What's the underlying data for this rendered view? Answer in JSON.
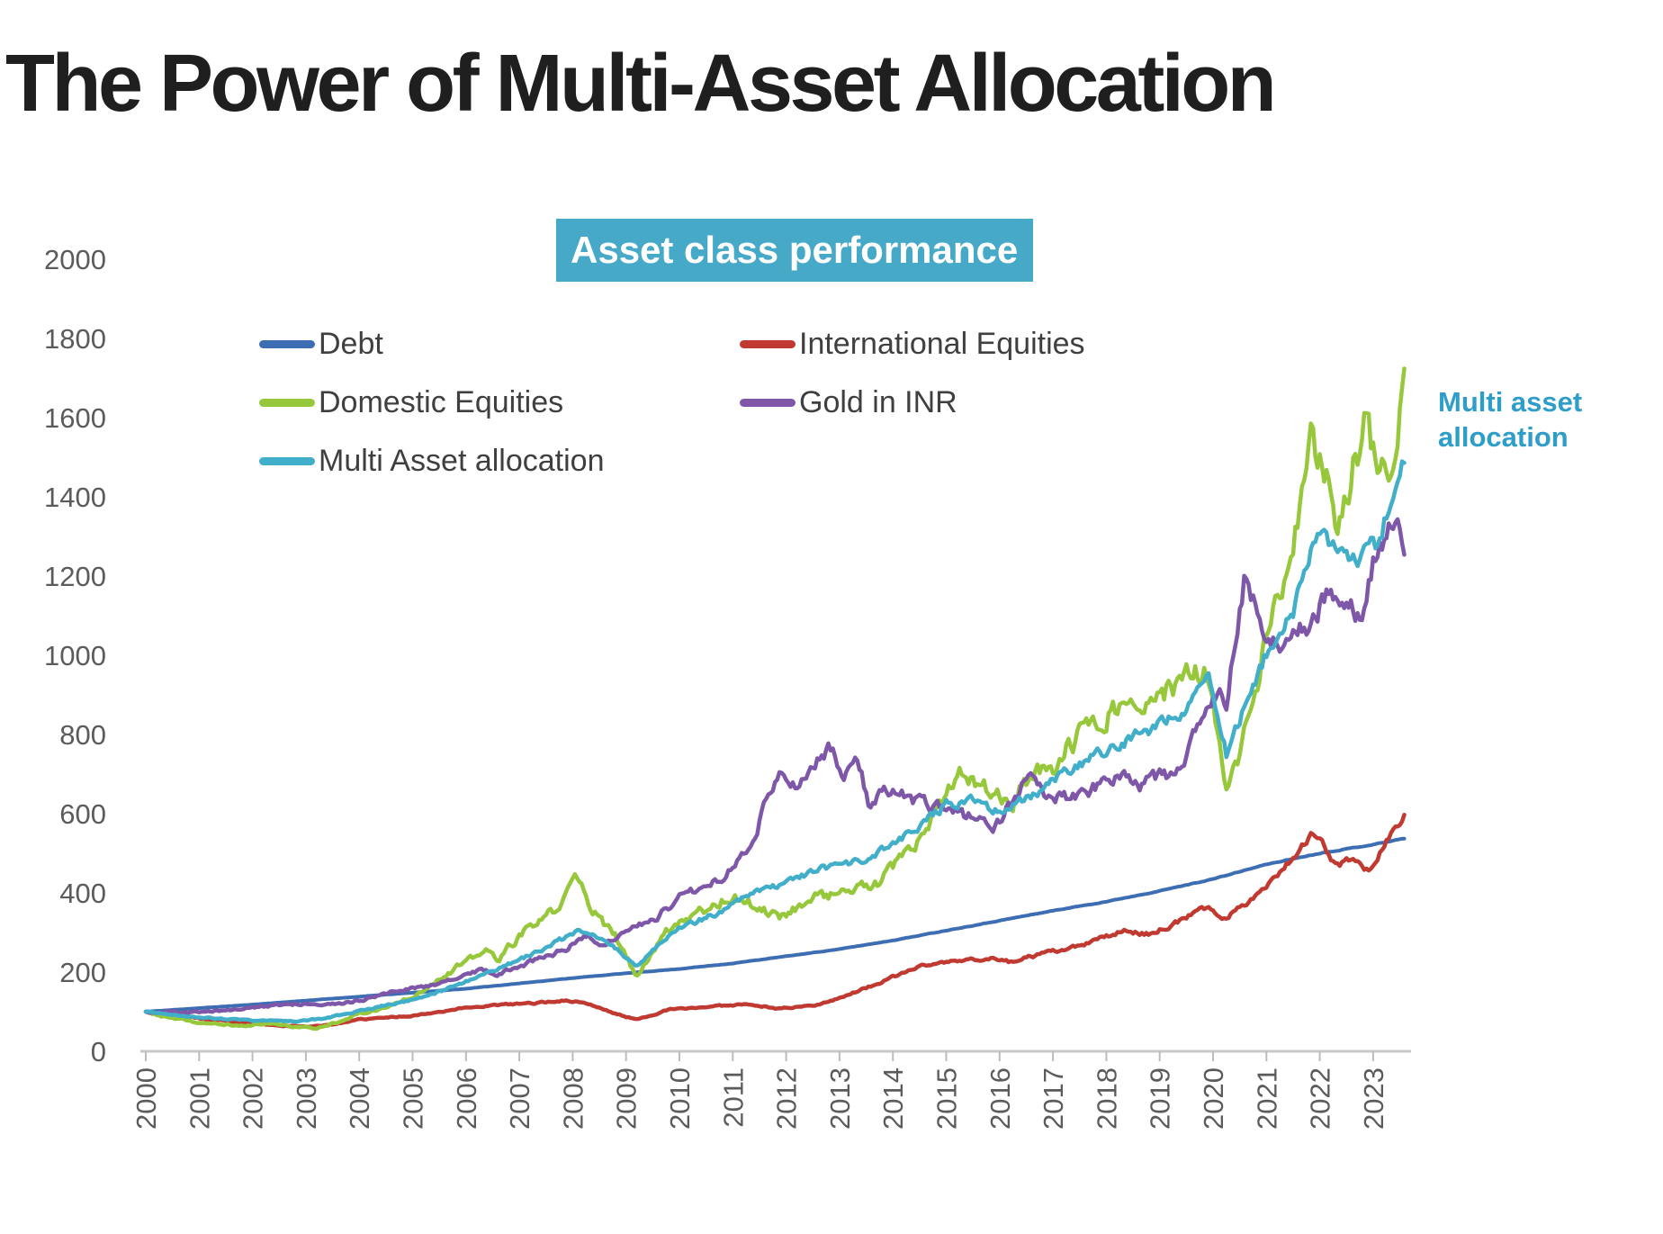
{
  "page": {
    "title": "The Power of Multi-Asset Allocation"
  },
  "chart": {
    "banner_title": "Asset class performance",
    "annotation": "Multi asset allocation",
    "banner_bg": "#46A9C8",
    "annotation_color": "#2E9EC9",
    "axis_text_color": "#5b5b5b",
    "axis_line_color": "#c9c9c9"
  },
  "chart_data": {
    "type": "line",
    "title": "Asset class performance",
    "grid": false,
    "legend_position": "top-left",
    "x_axis": {
      "range": [
        2000,
        2023.6
      ],
      "ticks": [
        2000,
        2001,
        2002,
        2003,
        2004,
        2005,
        2006,
        2007,
        2008,
        2009,
        2010,
        2011,
        2012,
        2013,
        2014,
        2015,
        2016,
        2017,
        2018,
        2019,
        2020,
        2021,
        2022,
        2023
      ],
      "tick_label_rotation": -90
    },
    "y_axis": {
      "range": [
        0,
        2000
      ],
      "ticks": [
        0,
        200,
        400,
        600,
        800,
        1000,
        1200,
        1400,
        1600,
        1800,
        2000
      ]
    },
    "base_value": 100,
    "legend": {
      "columns": [
        [
          0,
          2,
          4
        ],
        [
          1,
          3
        ]
      ]
    },
    "series": [
      {
        "name": "Debt",
        "color": "#3D6EB4",
        "volatility": 0.0015,
        "seed": 11,
        "width": 4,
        "keypoints": [
          [
            2000,
            100
          ],
          [
            2002,
            118
          ],
          [
            2004,
            138
          ],
          [
            2006,
            158
          ],
          [
            2008,
            185
          ],
          [
            2009,
            197
          ],
          [
            2010,
            208
          ],
          [
            2011,
            222
          ],
          [
            2012,
            240
          ],
          [
            2013,
            258
          ],
          [
            2014,
            280
          ],
          [
            2015,
            305
          ],
          [
            2016,
            330
          ],
          [
            2017,
            355
          ],
          [
            2018,
            378
          ],
          [
            2019,
            405
          ],
          [
            2020,
            435
          ],
          [
            2021,
            472
          ],
          [
            2022,
            500
          ],
          [
            2023,
            522
          ],
          [
            2023.6,
            538
          ]
        ]
      },
      {
        "name": "International Equities",
        "color": "#C03A32",
        "volatility": 0.015,
        "seed": 23,
        "width": 4.5,
        "keypoints": [
          [
            2000,
            100
          ],
          [
            2000.6,
            90
          ],
          [
            2001.2,
            80
          ],
          [
            2001.8,
            72
          ],
          [
            2002.4,
            66
          ],
          [
            2003.1,
            62
          ],
          [
            2003.6,
            70
          ],
          [
            2004,
            80
          ],
          [
            2005,
            90
          ],
          [
            2006,
            110
          ],
          [
            2006.5,
            116
          ],
          [
            2007.3,
            122
          ],
          [
            2007.8,
            128
          ],
          [
            2008.2,
            124
          ],
          [
            2008.8,
            95
          ],
          [
            2009.2,
            80
          ],
          [
            2009.8,
            105
          ],
          [
            2010.5,
            112
          ],
          [
            2011.3,
            120
          ],
          [
            2011.8,
            108
          ],
          [
            2012.5,
            115
          ],
          [
            2013,
            135
          ],
          [
            2013.8,
            175
          ],
          [
            2014.5,
            215
          ],
          [
            2015,
            225
          ],
          [
            2015.8,
            235
          ],
          [
            2016.2,
            226
          ],
          [
            2016.8,
            245
          ],
          [
            2017.5,
            265
          ],
          [
            2018.3,
            305
          ],
          [
            2018.8,
            295
          ],
          [
            2019.4,
            330
          ],
          [
            2019.9,
            365
          ],
          [
            2020.2,
            332
          ],
          [
            2020.8,
            395
          ],
          [
            2021.3,
            460
          ],
          [
            2021.9,
            555
          ],
          [
            2022.3,
            465
          ],
          [
            2022.6,
            490
          ],
          [
            2022.9,
            455
          ],
          [
            2023.2,
            520
          ],
          [
            2023.6,
            595
          ]
        ]
      },
      {
        "name": "Domestic Equities",
        "color": "#97C83C",
        "volatility": 0.03,
        "seed": 37,
        "width": 4.5,
        "keypoints": [
          [
            2000,
            100
          ],
          [
            2000.4,
            85
          ],
          [
            2001,
            72
          ],
          [
            2001.8,
            64
          ],
          [
            2002.3,
            70
          ],
          [
            2002.8,
            62
          ],
          [
            2003.2,
            58
          ],
          [
            2003.6,
            75
          ],
          [
            2004,
            95
          ],
          [
            2004.5,
            110
          ],
          [
            2005,
            140
          ],
          [
            2005.8,
            210
          ],
          [
            2006.4,
            255
          ],
          [
            2006.6,
            230
          ],
          [
            2007,
            290
          ],
          [
            2007.8,
            370
          ],
          [
            2008.05,
            445
          ],
          [
            2008.5,
            330
          ],
          [
            2008.8,
            290
          ],
          [
            2009.2,
            185
          ],
          [
            2009.7,
            300
          ],
          [
            2010,
            330
          ],
          [
            2010.8,
            380
          ],
          [
            2011,
            390
          ],
          [
            2011.9,
            340
          ],
          [
            2012.5,
            390
          ],
          [
            2013,
            400
          ],
          [
            2013.7,
            420
          ],
          [
            2014.5,
            530
          ],
          [
            2015,
            640
          ],
          [
            2015.3,
            700
          ],
          [
            2015.8,
            660
          ],
          [
            2016.2,
            620
          ],
          [
            2016.5,
            680
          ],
          [
            2017,
            720
          ],
          [
            2017.8,
            840
          ],
          [
            2018.2,
            870
          ],
          [
            2018.7,
            850
          ],
          [
            2019,
            900
          ],
          [
            2019.5,
            940
          ],
          [
            2019.9,
            960
          ],
          [
            2020.25,
            640
          ],
          [
            2020.7,
            850
          ],
          [
            2021,
            1050
          ],
          [
            2021.5,
            1250
          ],
          [
            2021.85,
            1545
          ],
          [
            2022.1,
            1450
          ],
          [
            2022.35,
            1320
          ],
          [
            2022.6,
            1480
          ],
          [
            2022.85,
            1580
          ],
          [
            2023.05,
            1500
          ],
          [
            2023.25,
            1440
          ],
          [
            2023.6,
            1710
          ]
        ]
      },
      {
        "name": "Gold in INR",
        "color": "#7E57A8",
        "volatility": 0.022,
        "seed": 51,
        "width": 4.5,
        "keypoints": [
          [
            2000,
            100
          ],
          [
            2000.8,
            98
          ],
          [
            2001.5,
            103
          ],
          [
            2002,
            110
          ],
          [
            2002.6,
            118
          ],
          [
            2003,
            122
          ],
          [
            2003.6,
            118
          ],
          [
            2004,
            128
          ],
          [
            2004.6,
            150
          ],
          [
            2005,
            158
          ],
          [
            2005.8,
            180
          ],
          [
            2006.3,
            210
          ],
          [
            2006.6,
            195
          ],
          [
            2007,
            215
          ],
          [
            2007.8,
            255
          ],
          [
            2008.3,
            290
          ],
          [
            2008.6,
            270
          ],
          [
            2009,
            310
          ],
          [
            2009.5,
            330
          ],
          [
            2010,
            390
          ],
          [
            2010.8,
            440
          ],
          [
            2011.3,
            520
          ],
          [
            2011.7,
            650
          ],
          [
            2011.9,
            700
          ],
          [
            2012.2,
            680
          ],
          [
            2012.8,
            760
          ],
          [
            2013.1,
            700
          ],
          [
            2013.35,
            750
          ],
          [
            2013.55,
            620
          ],
          [
            2013.8,
            650
          ],
          [
            2014.2,
            645
          ],
          [
            2014.6,
            620
          ],
          [
            2015,
            610
          ],
          [
            2015.5,
            590
          ],
          [
            2015.9,
            570
          ],
          [
            2016.3,
            640
          ],
          [
            2016.55,
            700
          ],
          [
            2016.9,
            630
          ],
          [
            2017.2,
            640
          ],
          [
            2017.6,
            655
          ],
          [
            2018,
            680
          ],
          [
            2018.3,
            710
          ],
          [
            2018.6,
            670
          ],
          [
            2019,
            690
          ],
          [
            2019.3,
            700
          ],
          [
            2019.6,
            780
          ],
          [
            2019.9,
            870
          ],
          [
            2020.1,
            920
          ],
          [
            2020.25,
            880
          ],
          [
            2020.6,
            1205
          ],
          [
            2020.9,
            1095
          ],
          [
            2021.25,
            1005
          ],
          [
            2021.6,
            1060
          ],
          [
            2021.9,
            1090
          ],
          [
            2022.2,
            1180
          ],
          [
            2022.5,
            1140
          ],
          [
            2022.8,
            1100
          ],
          [
            2023,
            1240
          ],
          [
            2023.25,
            1310
          ],
          [
            2023.45,
            1320
          ],
          [
            2023.6,
            1255
          ]
        ]
      },
      {
        "name": "Multi Asset allocation",
        "color": "#41AFCA",
        "volatility": 0.016,
        "seed": 67,
        "width": 4.5,
        "keypoints": [
          [
            2000,
            100
          ],
          [
            2000.5,
            92
          ],
          [
            2001,
            86
          ],
          [
            2001.5,
            81
          ],
          [
            2002,
            78
          ],
          [
            2002.8,
            76
          ],
          [
            2003.3,
            82
          ],
          [
            2004,
            102
          ],
          [
            2004.5,
            116
          ],
          [
            2005,
            130
          ],
          [
            2005.8,
            165
          ],
          [
            2006.4,
            200
          ],
          [
            2007,
            230
          ],
          [
            2007.8,
            282
          ],
          [
            2008.1,
            302
          ],
          [
            2008.6,
            282
          ],
          [
            2009.2,
            216
          ],
          [
            2009.6,
            270
          ],
          [
            2010,
            312
          ],
          [
            2010.8,
            352
          ],
          [
            2011.3,
            400
          ],
          [
            2012,
            422
          ],
          [
            2012.5,
            452
          ],
          [
            2013,
            470
          ],
          [
            2013.5,
            482
          ],
          [
            2014,
            520
          ],
          [
            2014.5,
            572
          ],
          [
            2015,
            622
          ],
          [
            2015.5,
            640
          ],
          [
            2016,
            602
          ],
          [
            2016.3,
            622
          ],
          [
            2016.8,
            662
          ],
          [
            2017,
            682
          ],
          [
            2017.5,
            722
          ],
          [
            2018,
            762
          ],
          [
            2018.5,
            792
          ],
          [
            2019,
            822
          ],
          [
            2019.5,
            872
          ],
          [
            2019.9,
            952
          ],
          [
            2020.25,
            748
          ],
          [
            2020.7,
            905
          ],
          [
            2021,
            1005
          ],
          [
            2021.5,
            1105
          ],
          [
            2021.95,
            1325
          ],
          [
            2022.3,
            1270
          ],
          [
            2022.7,
            1235
          ],
          [
            2022.9,
            1305
          ],
          [
            2023.05,
            1265
          ],
          [
            2023.3,
            1380
          ],
          [
            2023.6,
            1495
          ]
        ]
      }
    ]
  }
}
